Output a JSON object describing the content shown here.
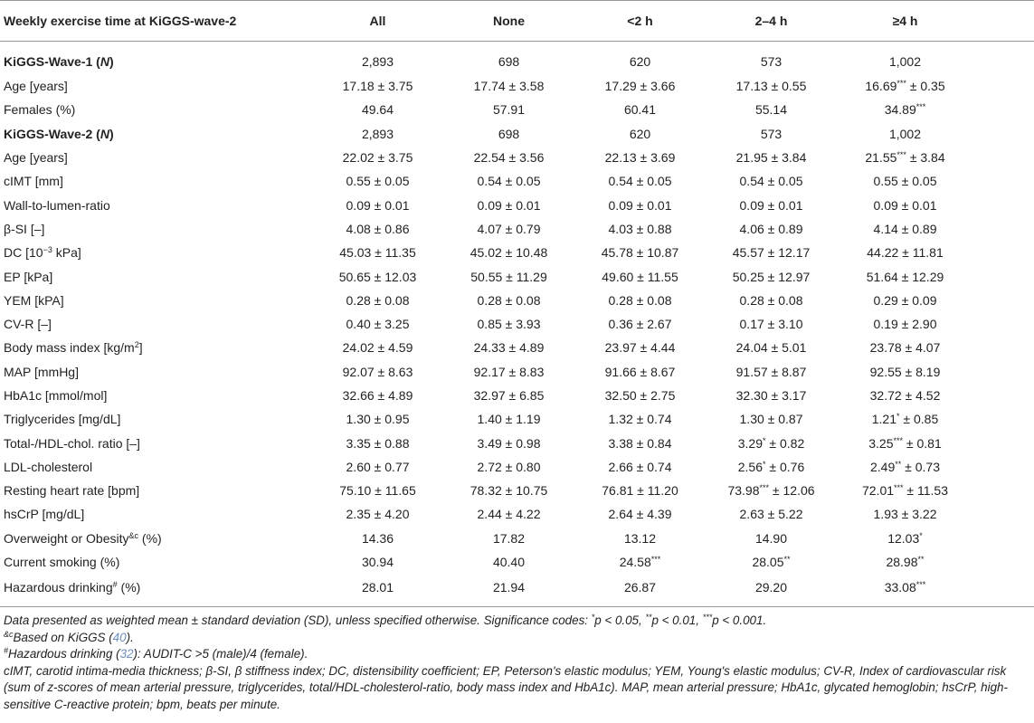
{
  "table": {
    "header": [
      "Weekly exercise time at KiGGS-wave-2",
      "All",
      "None",
      "<2 h",
      "2–4 h",
      "≥4 h"
    ],
    "rows": [
      {
        "bold": true,
        "label": [
          "KiGGS-Wave-1 (",
          {
            "text": "N",
            "italic": true
          },
          ")"
        ],
        "cells": [
          "2,893",
          "698",
          "620",
          "573",
          "1,002"
        ]
      },
      {
        "label": "Age [years]",
        "cells": [
          "17.18 ± 3.75",
          "17.74 ± 3.58",
          "17.29 ± 3.66",
          "17.13 ± 0.55",
          "16.69*** ± 0.35"
        ]
      },
      {
        "label": "Females (%)",
        "cells": [
          "49.64",
          "57.91",
          "60.41",
          "55.14",
          "34.89***"
        ]
      },
      {
        "bold": true,
        "label": [
          "KiGGS-Wave-2 (",
          {
            "text": "N",
            "italic": true
          },
          ")"
        ],
        "cells": [
          "2,893",
          "698",
          "620",
          "573",
          "1,002"
        ]
      },
      {
        "label": "Age [years]",
        "cells": [
          "22.02 ± 3.75",
          "22.54 ± 3.56",
          "22.13 ± 3.69",
          "21.95 ± 3.84",
          "21.55*** ± 3.84"
        ]
      },
      {
        "label": "cIMT [mm]",
        "cells": [
          "0.55 ± 0.05",
          "0.54 ± 0.05",
          "0.54 ± 0.05",
          "0.54 ± 0.05",
          "0.55 ± 0.05"
        ]
      },
      {
        "label": "Wall-to-lumen-ratio",
        "cells": [
          "0.09 ± 0.01",
          "0.09 ± 0.01",
          "0.09 ± 0.01",
          "0.09 ± 0.01",
          "0.09 ± 0.01"
        ]
      },
      {
        "label": "β-SI [–]",
        "cells": [
          "4.08 ± 0.86",
          "4.07 ± 0.79",
          "4.03 ± 0.88",
          "4.06 ± 0.89",
          "4.14 ± 0.89"
        ]
      },
      {
        "label": [
          "DC [10",
          {
            "text": "−3",
            "sup": true
          },
          " kPa]"
        ],
        "cells": [
          "45.03 ± 11.35",
          "45.02 ± 10.48",
          "45.78 ± 10.87",
          "45.57 ± 12.17",
          "44.22 ± 11.81"
        ]
      },
      {
        "label": "EP [kPa]",
        "cells": [
          "50.65 ± 12.03",
          "50.55 ± 11.29",
          "49.60 ± 11.55",
          "50.25 ± 12.97",
          "51.64 ± 12.29"
        ]
      },
      {
        "label": "YEM [kPA]",
        "cells": [
          "0.28 ± 0.08",
          "0.28 ± 0.08",
          "0.28 ± 0.08",
          "0.28 ± 0.08",
          "0.29 ± 0.09"
        ]
      },
      {
        "label": "CV-R [–]",
        "cells": [
          "0.40 ± 3.25",
          "0.85 ± 3.93",
          "0.36 ± 2.67",
          "0.17 ± 3.10",
          "0.19 ± 2.90"
        ]
      },
      {
        "label": [
          "Body mass index [kg/m",
          {
            "text": "2",
            "sup": true
          },
          "]"
        ],
        "cells": [
          "24.02 ± 4.59",
          "24.33 ± 4.89",
          "23.97 ± 4.44",
          "24.04 ± 5.01",
          "23.78 ± 4.07"
        ]
      },
      {
        "label": "MAP [mmHg]",
        "cells": [
          "92.07 ± 8.63",
          "92.17 ± 8.83",
          "91.66 ± 8.67",
          "91.57 ± 8.87",
          "92.55 ± 8.19"
        ]
      },
      {
        "label": "HbA1c [mmol/mol]",
        "cells": [
          "32.66 ± 4.89",
          "32.97 ± 6.85",
          "32.50 ± 2.75",
          "32.30 ± 3.17",
          "32.72 ± 4.52"
        ]
      },
      {
        "label": "Triglycerides [mg/dL]",
        "cells": [
          "1.30 ± 0.95",
          "1.40 ± 1.19",
          "1.32 ± 0.74",
          "1.30 ± 0.87",
          "1.21* ± 0.85"
        ]
      },
      {
        "label": "Total-/HDL-chol. ratio [–]",
        "cells": [
          "3.35 ± 0.88",
          "3.49 ± 0.98",
          "3.38 ± 0.84",
          "3.29* ± 0.82",
          "3.25*** ± 0.81"
        ]
      },
      {
        "label": "LDL-cholesterol",
        "cells": [
          "2.60 ± 0.77",
          "2.72 ± 0.80",
          "2.66 ± 0.74",
          "2.56* ± 0.76",
          "2.49** ± 0.73"
        ]
      },
      {
        "label": "Resting heart rate [bpm]",
        "cells": [
          "75.10 ± 11.65",
          "78.32 ± 10.75",
          "76.81 ± 11.20",
          "73.98*** ± 12.06",
          "72.01*** ± 11.53"
        ]
      },
      {
        "label": "hsCrP [mg/dL]",
        "cells": [
          "2.35 ± 4.20",
          "2.44 ± 4.22",
          "2.64 ± 4.39",
          "2.63 ± 5.22",
          "1.93 ± 3.22"
        ]
      },
      {
        "label": [
          "Overweight or Obesity",
          {
            "text": "&c",
            "sup": true
          },
          " (%)"
        ],
        "cells": [
          "14.36",
          "17.82",
          "13.12",
          "14.90",
          "12.03*"
        ]
      },
      {
        "label": "Current smoking (%)",
        "cells": [
          "30.94",
          "40.40",
          "24.58***",
          "28.05**",
          "28.98**"
        ]
      },
      {
        "label": [
          "Hazardous drinking",
          {
            "text": "#",
            "sup": true
          },
          " (%)"
        ],
        "cells": [
          "28.01",
          "21.94",
          "26.87",
          "29.20",
          "33.08***"
        ]
      }
    ]
  },
  "footnotes": [
    "Data presented as weighted mean ± standard deviation (SD), unless specified otherwise. Significance codes: *p < 0.05, **p < 0.01, ***p < 0.001.",
    [
      {
        "text": "&c",
        "sup": true
      },
      "Based on KiGGS (",
      {
        "text": "40",
        "link": true
      },
      ")."
    ],
    [
      {
        "text": "#",
        "sup": true
      },
      "Hazardous drinking (",
      {
        "text": "32",
        "link": true
      },
      "): AUDIT-C >5 (male)/4 (female)."
    ],
    "cIMT, carotid intima-media thickness; β-SI, β stiffness index; DC, distensibility coefficient; EP, Peterson's elastic modulus; YEM, Young's elastic modulus; CV-R, Index of cardiovascular risk (sum of z-scores of mean arterial pressure, triglycerides, total/HDL-cholesterol-ratio, body mass index and HbA1c). MAP, mean arterial pressure; HbA1c, glycated hemoglobin; hsCrP, high-sensitive C-reactive protein; bpm, beats per minute."
  ]
}
